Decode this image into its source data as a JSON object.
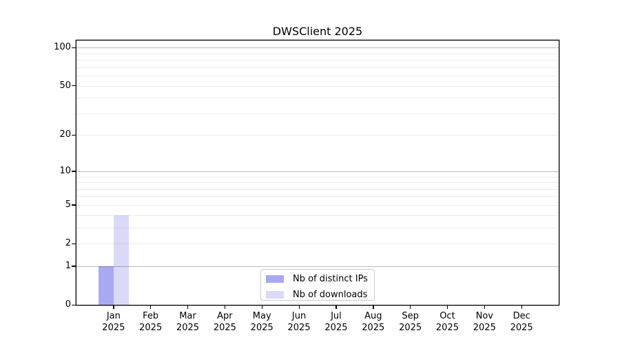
{
  "chart_data": {
    "type": "bar",
    "title": "DWSClient 2025",
    "x_axis": {
      "months": [
        "Jan",
        "Feb",
        "Mar",
        "Apr",
        "May",
        "Jun",
        "Jul",
        "Aug",
        "Sep",
        "Oct",
        "Nov",
        "Dec"
      ],
      "year": "2025"
    },
    "y_axis": {
      "scale": "log1p",
      "ylim": [
        0,
        113.6
      ],
      "ticks": [
        100,
        50,
        20,
        10,
        5,
        2,
        1,
        0
      ]
    },
    "grid": {
      "major_values": [
        1,
        10,
        100
      ],
      "minor_values": [
        2,
        3,
        4,
        5,
        6,
        7,
        8,
        9,
        20,
        30,
        40,
        50,
        60,
        70,
        80,
        90
      ],
      "major_color": "rgba(0,0,0,0.27)",
      "minor_color": "rgba(0,0,0,0.08)"
    },
    "series": [
      {
        "name": "Nb of distinct IPs",
        "color": "#a9a9f3",
        "values": [
          1,
          0,
          0,
          0,
          0,
          0,
          0,
          0,
          0,
          0,
          0,
          0
        ]
      },
      {
        "name": "Nb of downloads",
        "color": "#dadaf8",
        "values": [
          4,
          0,
          0,
          0,
          0,
          0,
          0,
          0,
          0,
          0,
          0,
          0
        ]
      }
    ],
    "legend": {
      "position": "bottom-center"
    }
  }
}
